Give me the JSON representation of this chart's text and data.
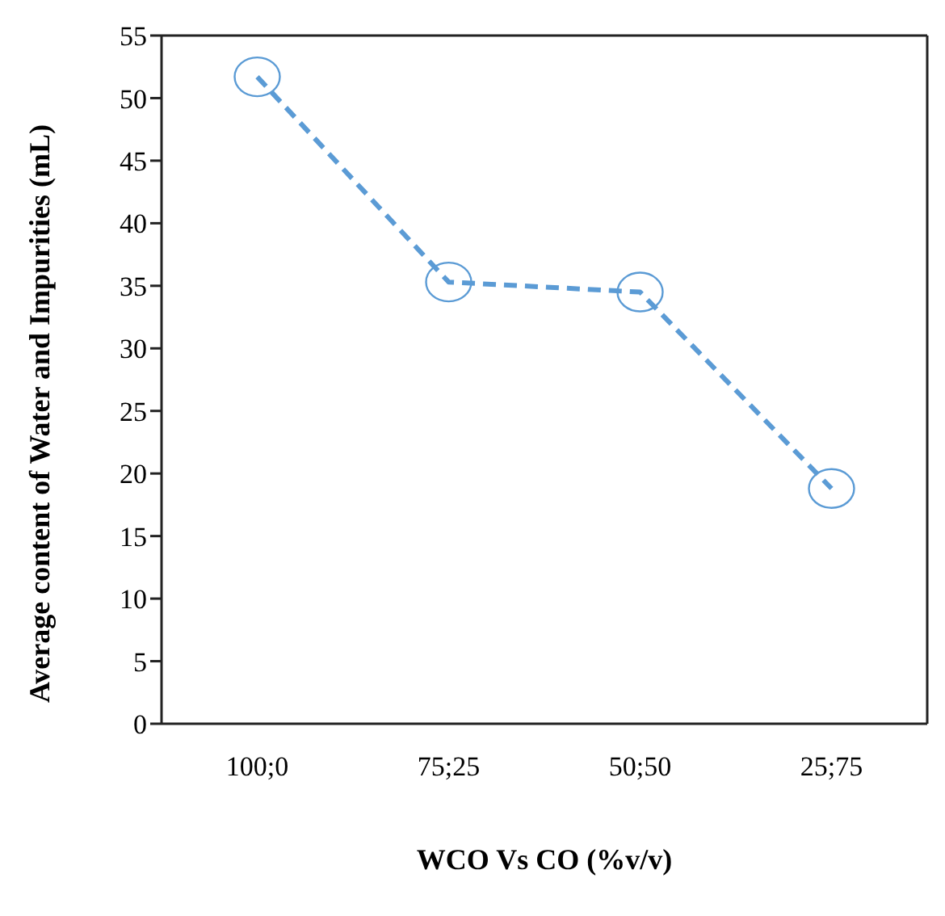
{
  "chart_data": {
    "type": "line",
    "xlabel": "WCO Vs CO (%v/v)",
    "ylabel": "Average content of Water and Impurities (mL)",
    "categories": [
      "100;0",
      "75;25",
      "50;50",
      "25;75"
    ],
    "series": [
      {
        "color": "#5b9bd5",
        "values": [
          51.7,
          35.3,
          34.5,
          18.8
        ]
      }
    ],
    "ylim": [
      0,
      55
    ],
    "yticks": [
      0,
      5,
      10,
      15,
      20,
      25,
      30,
      35,
      40,
      45,
      50,
      55
    ],
    "grid": false,
    "marker": "circle",
    "line_style": "dashed"
  }
}
